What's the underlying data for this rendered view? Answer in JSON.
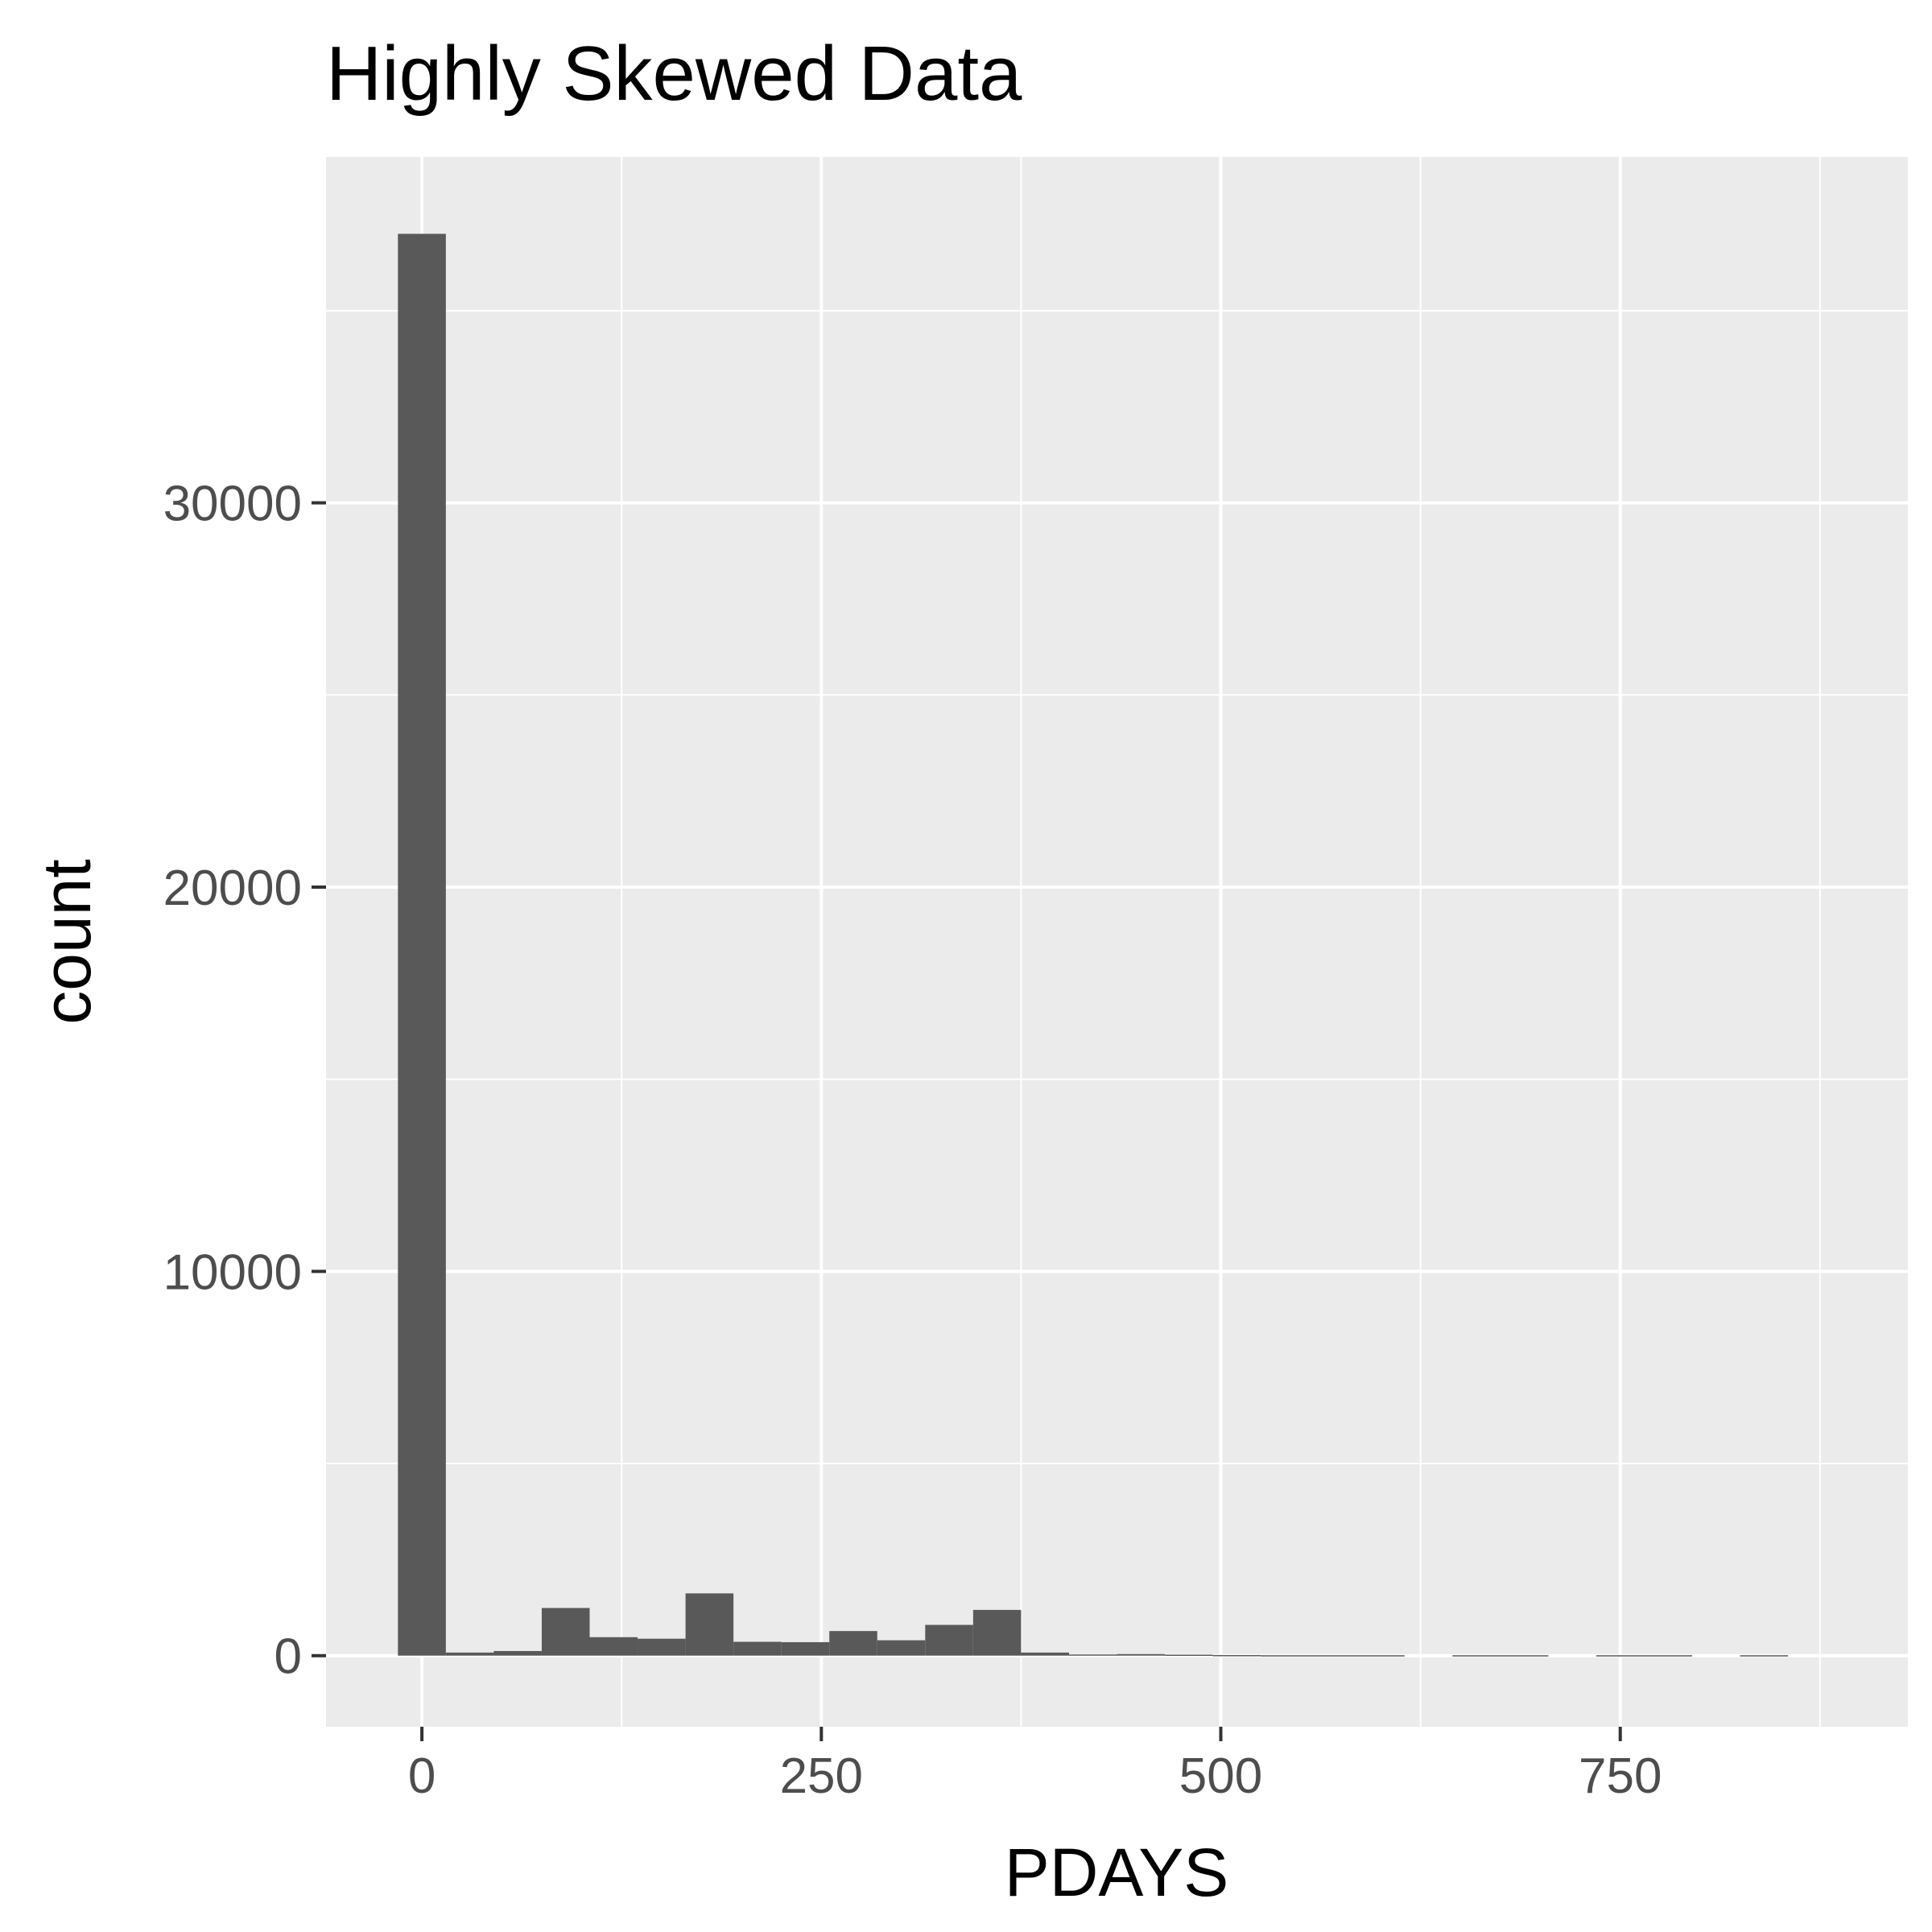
{
  "chart_data": {
    "type": "bar",
    "title": "Highly Skewed Data",
    "xlabel": "PDAYS",
    "ylabel": "count",
    "xlim": [
      -60,
      930
    ],
    "ylim": [
      -1850,
      39000
    ],
    "x_ticks": [
      0,
      250,
      500,
      750
    ],
    "x_minor_ticks": [
      125,
      375,
      625,
      875
    ],
    "y_ticks": [
      0,
      10000,
      20000,
      30000
    ],
    "y_minor_ticks": [
      5000,
      15000,
      25000,
      35000
    ],
    "grid": true,
    "legend": "none",
    "bin_width": 30,
    "bins": [
      {
        "x": 0,
        "count": 37000
      },
      {
        "x": 30,
        "count": 80
      },
      {
        "x": 60,
        "count": 120
      },
      {
        "x": 90,
        "count": 1240
      },
      {
        "x": 120,
        "count": 480
      },
      {
        "x": 150,
        "count": 440
      },
      {
        "x": 180,
        "count": 1620
      },
      {
        "x": 210,
        "count": 360
      },
      {
        "x": 240,
        "count": 350
      },
      {
        "x": 270,
        "count": 640
      },
      {
        "x": 300,
        "count": 400
      },
      {
        "x": 330,
        "count": 800
      },
      {
        "x": 360,
        "count": 1190
      },
      {
        "x": 390,
        "count": 80
      },
      {
        "x": 420,
        "count": 30
      },
      {
        "x": 450,
        "count": 40
      },
      {
        "x": 480,
        "count": 25
      },
      {
        "x": 510,
        "count": 15
      },
      {
        "x": 540,
        "count": 10
      },
      {
        "x": 570,
        "count": 10
      },
      {
        "x": 600,
        "count": 10
      },
      {
        "x": 630,
        "count": 0
      },
      {
        "x": 660,
        "count": 10
      },
      {
        "x": 690,
        "count": 10
      },
      {
        "x": 720,
        "count": 0
      },
      {
        "x": 750,
        "count": 10
      },
      {
        "x": 780,
        "count": 10
      },
      {
        "x": 810,
        "count": 0
      },
      {
        "x": 840,
        "count": 10
      }
    ],
    "colors": {
      "panel": "#ebebeb",
      "grid": "#ffffff",
      "bar": "#595959",
      "tick_text": "#4d4d4d",
      "tick_mark": "#333333"
    }
  }
}
